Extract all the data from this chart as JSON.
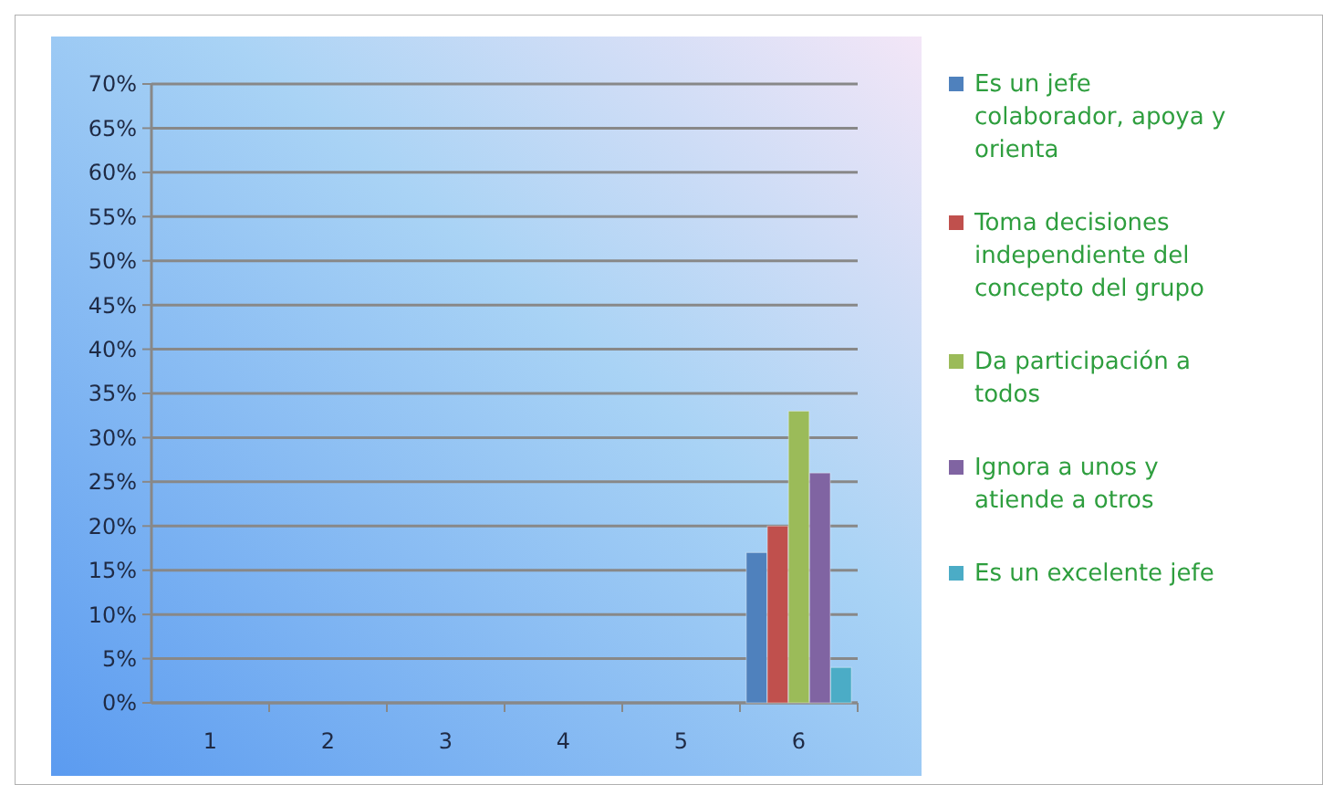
{
  "chart_data": {
    "type": "bar",
    "categories": [
      "1",
      "2",
      "3",
      "4",
      "5",
      "6"
    ],
    "series": [
      {
        "name": "Es un jefe colaborador, apoya y orienta",
        "color": "#4f81bd",
        "values": [
          null,
          null,
          null,
          null,
          null,
          17
        ]
      },
      {
        "name": "Toma decisiones independiente del concepto del grupo",
        "color": "#c0504d",
        "values": [
          null,
          null,
          null,
          null,
          null,
          20
        ]
      },
      {
        "name": "Da participación a todos",
        "color": "#9bbb59",
        "values": [
          null,
          null,
          null,
          null,
          null,
          33
        ]
      },
      {
        "name": "Ignora a unos y atiende a otros",
        "color": "#8064a2",
        "values": [
          null,
          null,
          null,
          null,
          null,
          26
        ]
      },
      {
        "name": "Es un excelente jefe",
        "color": "#4bacc6",
        "values": [
          null,
          null,
          null,
          null,
          null,
          4
        ]
      }
    ],
    "ylim": [
      0,
      70
    ],
    "yticks": [
      {
        "value": 0,
        "label": "0%"
      },
      {
        "value": 5,
        "label": "5%"
      },
      {
        "value": 10,
        "label": "10%"
      },
      {
        "value": 15,
        "label": "15%"
      },
      {
        "value": 20,
        "label": "20%"
      },
      {
        "value": 25,
        "label": "25%"
      },
      {
        "value": 30,
        "label": "30%"
      },
      {
        "value": 35,
        "label": "35%"
      },
      {
        "value": 40,
        "label": "40%"
      },
      {
        "value": 45,
        "label": "45%"
      },
      {
        "value": 50,
        "label": "50%"
      },
      {
        "value": 55,
        "label": "55%"
      },
      {
        "value": 60,
        "label": "60%"
      },
      {
        "value": 65,
        "label": "65%"
      },
      {
        "value": 70,
        "label": "70%"
      }
    ],
    "grid": "y",
    "legend": "right"
  }
}
